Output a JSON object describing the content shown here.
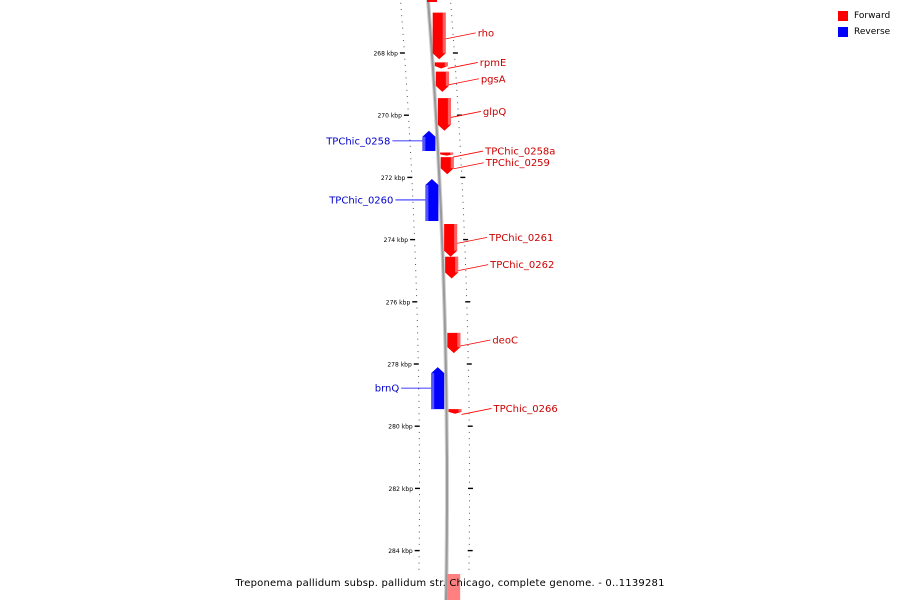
{
  "colors": {
    "forward": "#ff0000",
    "reverse": "#0000ff",
    "backbone": "#9a9a9a"
  },
  "legend": [
    {
      "label": "Forward",
      "color": "#ff0000"
    },
    {
      "label": "Reverse",
      "color": "#0000ff"
    }
  ],
  "ticks": [
    {
      "label": "268 kbp",
      "kbp": 268
    },
    {
      "label": "270 kbp",
      "kbp": 270
    },
    {
      "label": "272 kbp",
      "kbp": 272
    },
    {
      "label": "274 kbp",
      "kbp": 274
    },
    {
      "label": "276 kbp",
      "kbp": 276
    },
    {
      "label": "278 kbp",
      "kbp": 278
    },
    {
      "label": "280 kbp",
      "kbp": 280
    },
    {
      "label": "282 kbp",
      "kbp": 282
    },
    {
      "label": "284 kbp",
      "kbp": 284
    }
  ],
  "genes": [
    {
      "name": "rho",
      "strand": "forward",
      "start_kbp": 266.7,
      "end_kbp": 268.2
    },
    {
      "name": "rpmE",
      "strand": "forward",
      "start_kbp": 268.3,
      "end_kbp": 268.5
    },
    {
      "name": "pgsA",
      "strand": "forward",
      "start_kbp": 268.6,
      "end_kbp": 269.25
    },
    {
      "name": "glpQ",
      "strand": "forward",
      "start_kbp": 269.45,
      "end_kbp": 270.5
    },
    {
      "name": "TPChic_0258",
      "strand": "reverse",
      "start_kbp": 270.5,
      "end_kbp": 271.15
    },
    {
      "name": "TPChic_0258a",
      "strand": "forward",
      "start_kbp": 271.2,
      "end_kbp": 271.3
    },
    {
      "name": "TPChic_0259",
      "strand": "forward",
      "start_kbp": 271.35,
      "end_kbp": 271.9
    },
    {
      "name": "TPChic_0260",
      "strand": "reverse",
      "start_kbp": 272.05,
      "end_kbp": 273.4
    },
    {
      "name": "TPChic_0261",
      "strand": "forward",
      "start_kbp": 273.5,
      "end_kbp": 274.55
    },
    {
      "name": "TPChic_0262",
      "strand": "forward",
      "start_kbp": 274.55,
      "end_kbp": 275.25
    },
    {
      "name": "deoC",
      "strand": "forward",
      "start_kbp": 277.0,
      "end_kbp": 277.65
    },
    {
      "name": "brnQ",
      "strand": "reverse",
      "start_kbp": 278.1,
      "end_kbp": 279.45
    },
    {
      "name": "TPChic_0266",
      "strand": "forward",
      "start_kbp": 279.45,
      "end_kbp": 279.6
    }
  ],
  "caption": "Treponema pallidum subsp. pallidum str. Chicago, complete genome. - 0..1139281"
}
